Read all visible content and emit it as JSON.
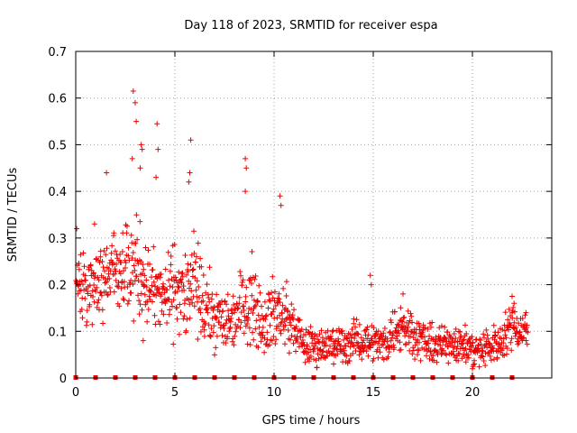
{
  "chart_data": {
    "type": "scatter",
    "title": "Day 118 of 2023, SRMTID for receiver espa",
    "xlabel": "GPS time / hours",
    "ylabel": "SRMTID / TECUs",
    "xlim": [
      0,
      24
    ],
    "ylim": [
      0,
      0.7
    ],
    "x_ticks": [
      0,
      5,
      10,
      15,
      20
    ],
    "y_ticks": [
      0,
      0.1,
      0.2,
      0.3,
      0.4,
      0.5,
      0.6,
      0.7
    ],
    "x_tick_labels": [
      "0",
      "5",
      "10",
      "15",
      "20"
    ],
    "y_tick_labels": [
      "0",
      "0.1",
      "0.2",
      "0.3",
      "0.4",
      "0.5",
      "0.6",
      "0.7"
    ],
    "grid": true,
    "marker": "plus",
    "color": "#ee0000",
    "series": [
      {
        "name": "SRMTID",
        "envelope": {
          "x": [
            0,
            0.5,
            1,
            1.5,
            2,
            2.5,
            3,
            3.5,
            4,
            4.5,
            5,
            5.5,
            6,
            6.5,
            7,
            7.5,
            8,
            8.5,
            9,
            9.5,
            10,
            10.5,
            11,
            11.5,
            12,
            12.5,
            13,
            13.5,
            14,
            14.5,
            15,
            15.5,
            16,
            16.5,
            17,
            17.5,
            18,
            18.5,
            19,
            19.5,
            20,
            20.5,
            21,
            21.5,
            22,
            22.5,
            22.8
          ],
          "y_mean": [
            0.22,
            0.19,
            0.2,
            0.22,
            0.24,
            0.25,
            0.24,
            0.21,
            0.18,
            0.17,
            0.2,
            0.17,
            0.2,
            0.15,
            0.13,
            0.12,
            0.13,
            0.17,
            0.16,
            0.12,
            0.14,
            0.13,
            0.11,
            0.07,
            0.07,
            0.07,
            0.07,
            0.07,
            0.08,
            0.08,
            0.08,
            0.07,
            0.1,
            0.11,
            0.1,
            0.08,
            0.07,
            0.07,
            0.08,
            0.07,
            0.06,
            0.06,
            0.07,
            0.08,
            0.12,
            0.1,
            0.11
          ],
          "y_spread": [
            0.06,
            0.07,
            0.06,
            0.07,
            0.06,
            0.07,
            0.08,
            0.07,
            0.06,
            0.06,
            0.07,
            0.07,
            0.08,
            0.06,
            0.05,
            0.05,
            0.05,
            0.06,
            0.07,
            0.05,
            0.06,
            0.05,
            0.04,
            0.03,
            0.03,
            0.03,
            0.03,
            0.03,
            0.03,
            0.03,
            0.03,
            0.03,
            0.04,
            0.04,
            0.04,
            0.03,
            0.03,
            0.03,
            0.03,
            0.03,
            0.03,
            0.03,
            0.03,
            0.03,
            0.04,
            0.03,
            0.03
          ]
        },
        "peaks": [
          {
            "x": 0.05,
            "y": 0.32
          },
          {
            "x": 0.95,
            "y": 0.33
          },
          {
            "x": 1.55,
            "y": 0.44
          },
          {
            "x": 2.9,
            "y": 0.615
          },
          {
            "x": 3.0,
            "y": 0.59
          },
          {
            "x": 3.05,
            "y": 0.55
          },
          {
            "x": 2.85,
            "y": 0.47
          },
          {
            "x": 3.3,
            "y": 0.5
          },
          {
            "x": 3.35,
            "y": 0.49
          },
          {
            "x": 3.25,
            "y": 0.45
          },
          {
            "x": 4.1,
            "y": 0.545
          },
          {
            "x": 4.15,
            "y": 0.49
          },
          {
            "x": 4.05,
            "y": 0.43
          },
          {
            "x": 5.8,
            "y": 0.51
          },
          {
            "x": 5.75,
            "y": 0.44
          },
          {
            "x": 5.7,
            "y": 0.42
          },
          {
            "x": 8.55,
            "y": 0.47
          },
          {
            "x": 8.6,
            "y": 0.45
          },
          {
            "x": 8.55,
            "y": 0.4
          },
          {
            "x": 10.3,
            "y": 0.39
          },
          {
            "x": 10.35,
            "y": 0.37
          },
          {
            "x": 14.85,
            "y": 0.22
          },
          {
            "x": 14.9,
            "y": 0.2
          },
          {
            "x": 16.5,
            "y": 0.18
          },
          {
            "x": 22.0,
            "y": 0.175
          },
          {
            "x": 22.1,
            "y": 0.16
          },
          {
            "x": 22.7,
            "y": 0.14
          },
          {
            "x": 20.0,
            "y": 0.02
          },
          {
            "x": 20.1,
            "y": 0.03
          },
          {
            "x": 3.4,
            "y": 0.08
          },
          {
            "x": 12.0,
            "y": 0.04
          },
          {
            "x": 13.0,
            "y": 0.03
          }
        ]
      }
    ],
    "baseline_markers_x": [
      0,
      1,
      2,
      3,
      4,
      5,
      6,
      7,
      8,
      9,
      10,
      11,
      12,
      13,
      14,
      15,
      16,
      17,
      18,
      19,
      20,
      21,
      22
    ]
  }
}
